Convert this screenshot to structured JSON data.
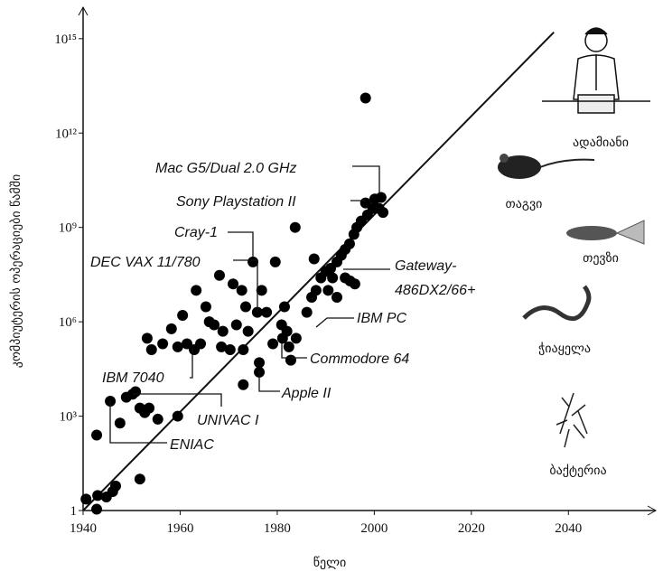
{
  "chart_data": {
    "type": "scatter",
    "y_label": "კომპიუტერის ოპერაციები წამში",
    "x_label": "წელი",
    "log_y": true,
    "color": "#000000",
    "xlim": [
      1940,
      2058
    ],
    "xticks": [
      1940,
      1960,
      1980,
      2000,
      2020,
      2040
    ],
    "ylim": [
      1,
      1e+16
    ],
    "yticks": [
      1,
      {
        "value": 1000,
        "label": "10³"
      },
      {
        "value": 1000000,
        "label": "10⁶"
      },
      {
        "value": 1000000000,
        "label": "10⁹"
      },
      {
        "value": 1000000000000,
        "label": "10¹²"
      },
      {
        "value": 1000000000000000,
        "label": "10¹⁵"
      }
    ],
    "x": [
      1940.6,
      1942.8,
      1943,
      1944.8,
      1946.1,
      1946.7,
      1942.8,
      1945.6,
      1947.6,
      1948.9,
      1950.2,
      1950.8,
      1951.7,
      1952.7,
      1953.6,
      1955.4,
      1951.7,
      1959.5,
      1953.2,
      1954.1,
      1956.4,
      1958.2,
      1960.5,
      1959.5,
      1961.4,
      1962.9,
      1964.2,
      1963.3,
      1965.3,
      1966,
      1967,
      1968.8,
      1968.1,
      1968.5,
      1970.3,
      1970.9,
      1971.6,
      1972.7,
      1973,
      1973.5,
      1974,
      1975,
      1975.9,
      1976.8,
      1977.8,
      1973,
      1976.3,
      1976.3,
      1979.1,
      1979.6,
      1981.5,
      1980.9,
      1982,
      1981.1,
      1982.4,
      1983.9,
      1982.8,
      1983.7,
      1986.1,
      1987.1,
      1988,
      1987.6,
      1989,
      1990,
      1991,
      1991.4,
      1992.3,
      1993.2,
      1994,
      1994.9,
      1995.8,
      1996.4,
      1997.3,
      1998.6,
      1998.2,
      1999.7,
      2000.1,
      2001,
      2001.4,
      2001.8,
      1998.2,
      1990.5,
      1992.3,
      1994,
      1995,
      1996
    ],
    "values": [
      2.3,
      1.1,
      3,
      2.7,
      4,
      6,
      250,
      3000,
      600,
      4000,
      5000,
      6000,
      1800,
      1300,
      1800,
      800,
      10,
      1000,
      300000,
      130000,
      200000,
      600000,
      1600000,
      160000,
      200000,
      130000,
      200000,
      10000000,
      3000000,
      1000000,
      800000,
      500000,
      30000000,
      160000,
      130000,
      16000000,
      800000,
      10000000,
      130000,
      3000000,
      500000,
      80000000,
      2000000,
      10000000,
      2000000,
      10000,
      50000,
      25000,
      200000,
      80000000,
      3000000,
      800000,
      500000,
      300000,
      160000,
      300000,
      60000,
      1000000000,
      2000000,
      6000000,
      10000000,
      100000000,
      25000000,
      40000000,
      50000000,
      25000000,
      80000000,
      130000000,
      200000000,
      300000000,
      600000000,
      1000000000,
      1600000000,
      2500000000,
      6000000000,
      4000000000,
      8000000000,
      4000000000,
      9000000000,
      3000000000,
      13000000000000,
      10000000,
      6000000,
      25000000,
      20000000,
      16000000
    ],
    "trend": {
      "x": [
        1940,
        2037
      ],
      "values": [
        1,
        1600000000000000
      ]
    },
    "annotations": [
      "Mac G5/Dual 2.0 GHz",
      "Sony Playstation II",
      "Cray-1",
      "DEC VAX 11/780",
      "Gateway-",
      "486DX2/66+",
      "IBM PC",
      "Commodore 64",
      "Apple II",
      "IBM 7040",
      "UNIVAC I",
      "ENIAC"
    ],
    "scale_labels": [
      "ადამიანი",
      "თაგვი",
      "თევზი",
      "ჭიაყელა",
      "ბაქტერია"
    ]
  }
}
